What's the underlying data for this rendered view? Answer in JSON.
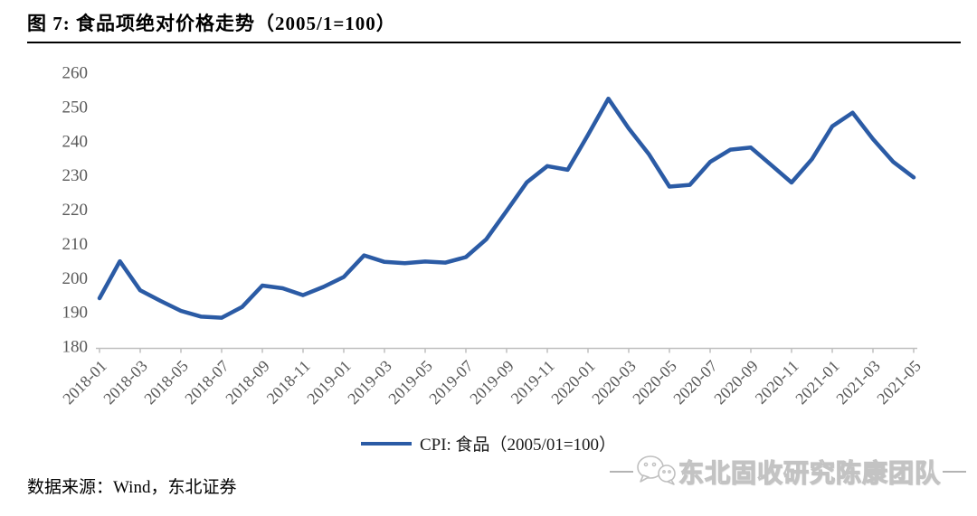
{
  "title": "图  7:  食品项绝对价格走势（2005/1=100）",
  "legend": {
    "label": "CPI:  食品（2005/01=100）"
  },
  "source": "数据来源：Wind，东北证券",
  "watermark": {
    "text": "东北固收研究陈康团队",
    "icon": "wechat-icon"
  },
  "colors": {
    "line": "#2B5BA5",
    "axis": "#BFBFBF",
    "tick_label": "#595959",
    "title": "#000000",
    "watermark": "#C3C3C3"
  },
  "chart_data": {
    "type": "line",
    "title": "食品项绝对价格走势（2005/1=100）",
    "xlabel": "",
    "ylabel": "",
    "ylim": [
      180,
      260
    ],
    "yticks": [
      180,
      190,
      200,
      210,
      220,
      230,
      240,
      250,
      260
    ],
    "grid": false,
    "legend_position": "bottom-center",
    "x_tick_labels": [
      "2018-01",
      "2018-03",
      "2018-05",
      "2018-07",
      "2018-09",
      "2018-11",
      "2019-01",
      "2019-03",
      "2019-05",
      "2019-07",
      "2019-09",
      "2019-11",
      "2020-01",
      "2020-03",
      "2020-05",
      "2020-07",
      "2020-09",
      "2020-11",
      "2021-01",
      "2021-03",
      "2021-05"
    ],
    "x": [
      "2018-01",
      "2018-02",
      "2018-03",
      "2018-04",
      "2018-05",
      "2018-06",
      "2018-07",
      "2018-08",
      "2018-09",
      "2018-10",
      "2018-11",
      "2018-12",
      "2019-01",
      "2019-02",
      "2019-03",
      "2019-04",
      "2019-05",
      "2019-06",
      "2019-07",
      "2019-08",
      "2019-09",
      "2019-10",
      "2019-11",
      "2019-12",
      "2020-01",
      "2020-02",
      "2020-03",
      "2020-04",
      "2020-05",
      "2020-06",
      "2020-07",
      "2020-08",
      "2020-09",
      "2020-10",
      "2020-11",
      "2020-12",
      "2021-01",
      "2021-02",
      "2021-03",
      "2021-04",
      "2021-05"
    ],
    "series": [
      {
        "name": "CPI:  食品（2005/01=100）",
        "values": [
          194.0,
          204.8,
          196.3,
          193.2,
          190.3,
          188.6,
          188.3,
          191.4,
          197.7,
          196.9,
          194.9,
          197.3,
          200.2,
          206.5,
          204.6,
          204.2,
          204.7,
          204.4,
          206.0,
          211.2,
          219.5,
          227.9,
          232.6,
          231.5,
          241.7,
          252.3,
          243.6,
          236.0,
          226.6,
          227.1,
          233.8,
          237.4,
          238.0,
          232.9,
          227.8,
          234.6,
          244.2,
          248.2,
          240.5,
          233.8,
          229.3
        ]
      }
    ]
  }
}
